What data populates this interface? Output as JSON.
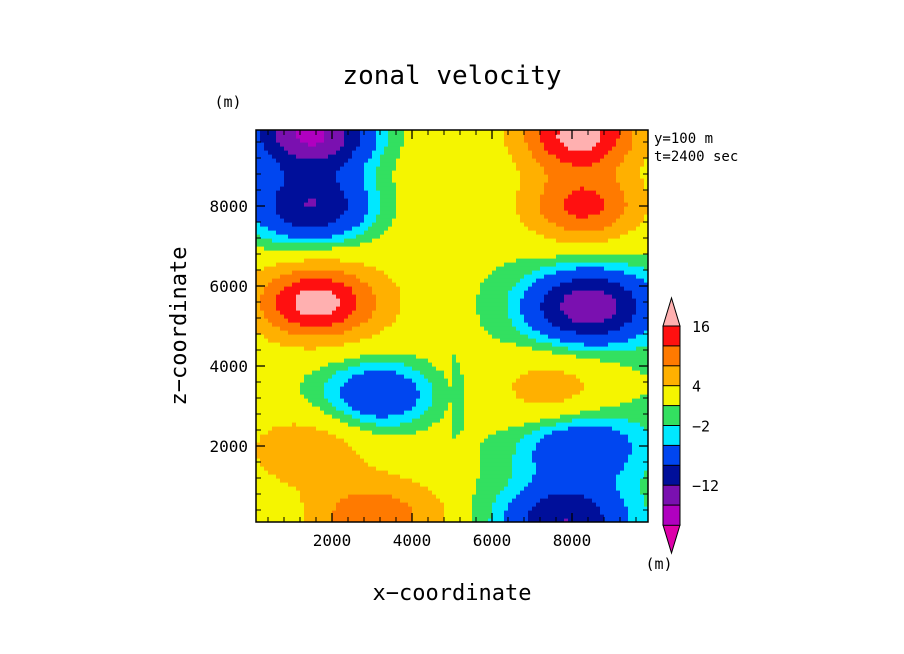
{
  "chart_data": {
    "type": "heatmap",
    "title": "zonal velocity",
    "xlabel": "x−coordinate",
    "ylabel": "z−coordinate",
    "x_unit": "(m)",
    "y_unit": "(m)",
    "colorbar_unit": "(m)",
    "annotations": [
      "y=100 m",
      "t=2400 sec"
    ],
    "xlim": [
      100,
      9900
    ],
    "ylim": [
      100,
      9900
    ],
    "x_ticks": [
      2000,
      4000,
      6000,
      8000
    ],
    "y_ticks": [
      2000,
      4000,
      6000,
      8000
    ],
    "x_tick_labels": [
      "2000",
      "4000",
      "6000",
      "8000"
    ],
    "y_tick_labels": [
      "2000",
      "4000",
      "6000",
      "8000"
    ],
    "colorbar": {
      "levels": [
        -20,
        -16,
        -12,
        -8,
        -4,
        -2,
        0,
        4,
        8,
        12,
        16,
        20
      ],
      "labels": [
        {
          "value": 16,
          "text": "16"
        },
        {
          "value": 4,
          "text": "4"
        },
        {
          "value": -2,
          "text": "−2"
        },
        {
          "value": -12,
          "text": "−12"
        }
      ],
      "colors": [
        "#dd00aa",
        "#b000c0",
        "#7a10b0",
        "#000f9a",
        "#0046f0",
        "#00e8ff",
        "#33e060",
        "#f5f500",
        "#ffb000",
        "#ff7a00",
        "#ff1010",
        "#ffb0b0"
      ],
      "open_ends": true
    },
    "fields": {
      "grid": "interpolated from sampled centers",
      "features": [
        {
          "x": 1600,
          "z": 5600,
          "value": 17
        },
        {
          "x": 1500,
          "z": 8000,
          "value": -13
        },
        {
          "x": 8300,
          "z": 8000,
          "value": 13
        },
        {
          "x": 8400,
          "z": 5500,
          "value": -15
        },
        {
          "x": 3200,
          "z": 3300,
          "value": -9
        },
        {
          "x": 1500,
          "z": 9800,
          "value": -18
        },
        {
          "x": 8200,
          "z": 9800,
          "value": 18
        },
        {
          "x": 7500,
          "z": 3400,
          "value": 6
        },
        {
          "x": 8200,
          "z": 2000,
          "value": -8
        },
        {
          "x": 7800,
          "z": 150,
          "value": -12
        },
        {
          "x": 3000,
          "z": 200,
          "value": 10
        },
        {
          "x": 1300,
          "z": 1900,
          "value": 6
        }
      ]
    }
  }
}
